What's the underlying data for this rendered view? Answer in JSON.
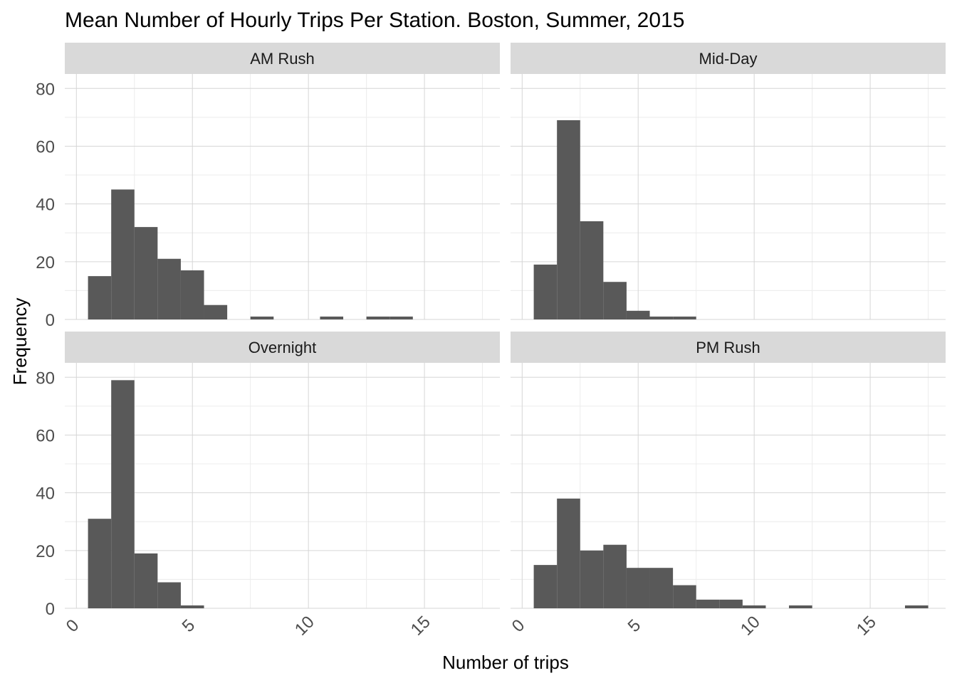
{
  "chart_data": {
    "type": "bar",
    "subtype": "histogram-facets",
    "title": "Mean Number of Hourly Trips Per Station. Boston, Summer, 2015",
    "xlabel": "Number of trips",
    "ylabel": "Frequency",
    "xlim": [
      -0.5,
      18.25
    ],
    "ylim": [
      0,
      85
    ],
    "x_ticks": [
      "0",
      "5",
      "10",
      "15"
    ],
    "y_ticks": [
      "0",
      "20",
      "40",
      "60",
      "80"
    ],
    "grid": true,
    "bin_width": 1,
    "bin_starts": [
      0.5,
      1.5,
      2.5,
      3.5,
      4.5,
      5.5,
      6.5,
      7.5,
      8.5,
      9.5,
      10.5,
      11.5,
      12.5,
      13.5,
      14.5,
      15.5,
      16.5
    ],
    "panels": [
      {
        "name": "AM Rush",
        "values": [
          15,
          45,
          32,
          21,
          17,
          5,
          0,
          1,
          0,
          0,
          1,
          0,
          1,
          1,
          0,
          0,
          0
        ]
      },
      {
        "name": "Mid-Day",
        "values": [
          19,
          69,
          34,
          13,
          3,
          1,
          1,
          0,
          0,
          0,
          0,
          0,
          0,
          0,
          0,
          0,
          0
        ]
      },
      {
        "name": "Overnight",
        "values": [
          31,
          79,
          19,
          9,
          1,
          0,
          0,
          0,
          0,
          0,
          0,
          0,
          0,
          0,
          0,
          0,
          0
        ]
      },
      {
        "name": "PM Rush",
        "values": [
          15,
          38,
          20,
          22,
          14,
          14,
          8,
          3,
          3,
          1,
          0,
          1,
          0,
          0,
          0,
          0,
          1
        ]
      }
    ]
  }
}
